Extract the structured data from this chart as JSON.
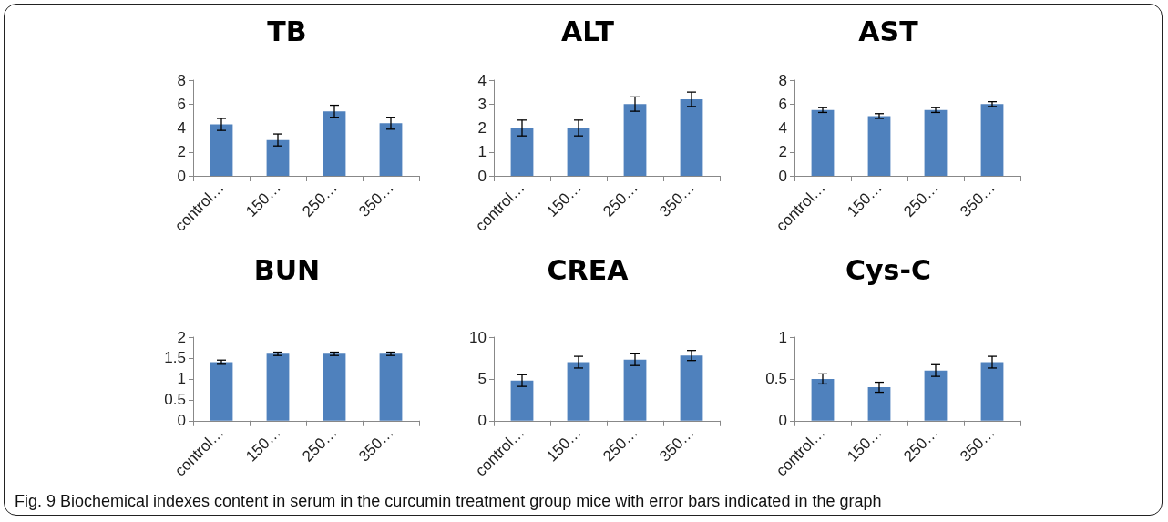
{
  "chart_data": [
    {
      "type": "bar",
      "title": "TB",
      "categories": [
        "control…",
        "150…",
        "250…",
        "350…"
      ],
      "color": "#4f81bd",
      "values": [
        4.3,
        3.0,
        5.4,
        4.4
      ],
      "errors": [
        0.5,
        0.5,
        0.5,
        0.5
      ],
      "ylim": [
        0,
        8
      ],
      "yticks": [
        0,
        2,
        4,
        6,
        8
      ]
    },
    {
      "type": "bar",
      "title": "ALT",
      "categories": [
        "control…",
        "150…",
        "250…",
        "350…"
      ],
      "color": "#4f81bd",
      "values": [
        2.0,
        2.0,
        3.0,
        3.2
      ],
      "errors": [
        0.33,
        0.33,
        0.3,
        0.3
      ],
      "ylim": [
        0,
        4
      ],
      "yticks": [
        0,
        1,
        2,
        3,
        4
      ]
    },
    {
      "type": "bar",
      "title": "AST",
      "categories": [
        "control…",
        "150…",
        "250…",
        "350…"
      ],
      "color": "#4f81bd",
      "values": [
        5.5,
        5.0,
        5.5,
        6.0
      ],
      "errors": [
        0.2,
        0.2,
        0.2,
        0.2
      ],
      "ylim": [
        0,
        8
      ],
      "yticks": [
        0,
        2,
        4,
        6,
        8
      ]
    },
    {
      "type": "bar",
      "title": "BUN",
      "categories": [
        "control…",
        "150…",
        "250…",
        "350…"
      ],
      "color": "#4f81bd",
      "values": [
        1.4,
        1.6,
        1.6,
        1.6
      ],
      "errors": [
        0.05,
        0.04,
        0.04,
        0.04
      ],
      "ylim": [
        0,
        2
      ],
      "yticks": [
        0,
        0.5,
        1,
        1.5,
        2
      ]
    },
    {
      "type": "bar",
      "title": "CREA",
      "categories": [
        "control…",
        "150…",
        "250…",
        "350…"
      ],
      "color": "#4f81bd",
      "values": [
        4.8,
        7.0,
        7.3,
        7.8
      ],
      "errors": [
        0.7,
        0.7,
        0.7,
        0.6
      ],
      "ylim": [
        0,
        10
      ],
      "yticks": [
        0,
        5,
        10
      ]
    },
    {
      "type": "bar",
      "title": "Cys-C",
      "categories": [
        "control…",
        "150…",
        "250…",
        "350…"
      ],
      "color": "#4f81bd",
      "values": [
        0.5,
        0.4,
        0.6,
        0.7
      ],
      "errors": [
        0.06,
        0.06,
        0.07,
        0.07
      ],
      "ylim": [
        0,
        1
      ],
      "yticks": [
        0,
        0.5,
        1
      ],
      "annotations": [
        "Fig. 9 Biochemical indexes content in serum in the curcumin treatment group mice with error bars indicated in the graph"
      ]
    }
  ]
}
